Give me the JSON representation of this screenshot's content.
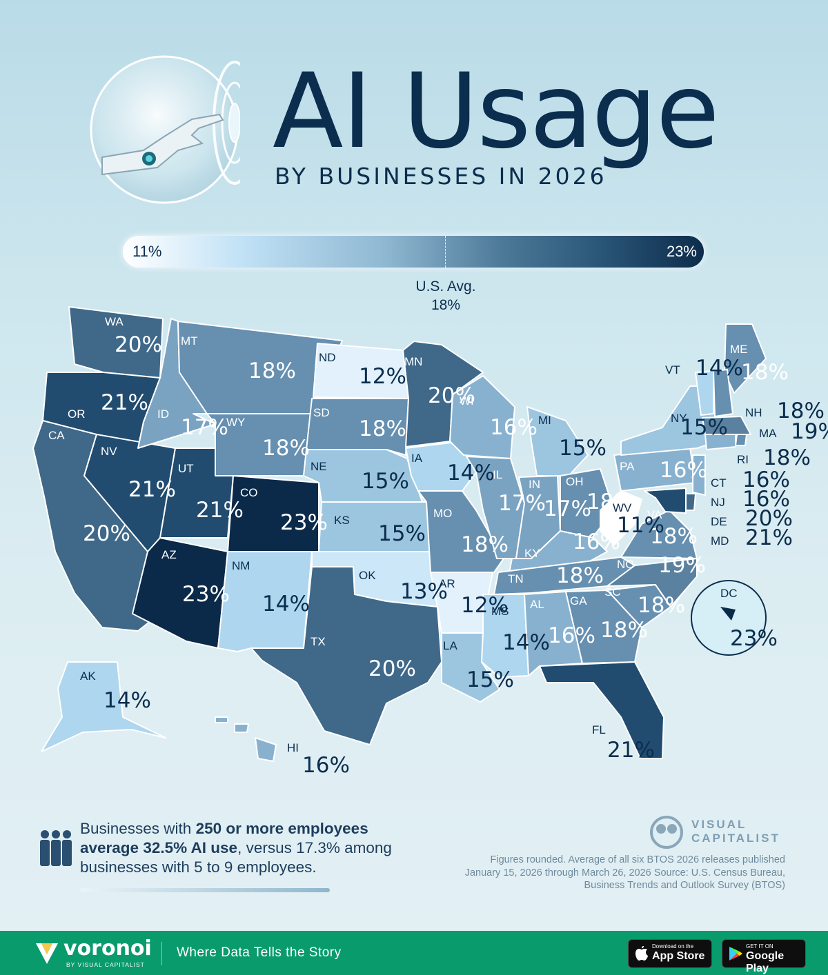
{
  "title": "AI Usage",
  "subtitle": "BY BUSINESSES IN 2026",
  "legend": {
    "min": "11%",
    "max": "23%",
    "avg_label": "U.S. Avg.",
    "avg_value": "18%"
  },
  "states": [
    {
      "code": "WA",
      "value": "20%"
    },
    {
      "code": "OR",
      "value": "21%"
    },
    {
      "code": "CA",
      "value": "20%"
    },
    {
      "code": "NV",
      "value": "21%"
    },
    {
      "code": "ID",
      "value": "17%"
    },
    {
      "code": "MT",
      "value": "18%"
    },
    {
      "code": "WY",
      "value": "18%"
    },
    {
      "code": "UT",
      "value": "21%"
    },
    {
      "code": "CO",
      "value": "23%"
    },
    {
      "code": "AZ",
      "value": "23%"
    },
    {
      "code": "NM",
      "value": "14%"
    },
    {
      "code": "ND",
      "value": "12%"
    },
    {
      "code": "SD",
      "value": "18%"
    },
    {
      "code": "NE",
      "value": "15%"
    },
    {
      "code": "KS",
      "value": "15%"
    },
    {
      "code": "OK",
      "value": "13%"
    },
    {
      "code": "TX",
      "value": "20%"
    },
    {
      "code": "MN",
      "value": "20%"
    },
    {
      "code": "IA",
      "value": "14%"
    },
    {
      "code": "MO",
      "value": "18%"
    },
    {
      "code": "AR",
      "value": "12%"
    },
    {
      "code": "LA",
      "value": "15%"
    },
    {
      "code": "WI",
      "value": "16%"
    },
    {
      "code": "IL",
      "value": "17%"
    },
    {
      "code": "MI",
      "value": "15%"
    },
    {
      "code": "IN",
      "value": "17%"
    },
    {
      "code": "OH",
      "value": "18%"
    },
    {
      "code": "KY",
      "value": "16%"
    },
    {
      "code": "TN",
      "value": "18%"
    },
    {
      "code": "MS",
      "value": "14%"
    },
    {
      "code": "AL",
      "value": "16%"
    },
    {
      "code": "GA",
      "value": "18%"
    },
    {
      "code": "FL",
      "value": "21%"
    },
    {
      "code": "SC",
      "value": "18%"
    },
    {
      "code": "NC",
      "value": "19%"
    },
    {
      "code": "VA",
      "value": "18%"
    },
    {
      "code": "WV",
      "value": "11%"
    },
    {
      "code": "PA",
      "value": "16%"
    },
    {
      "code": "NY",
      "value": "15%"
    },
    {
      "code": "VT",
      "value": "14%"
    },
    {
      "code": "ME",
      "value": "18%"
    },
    {
      "code": "NH",
      "value": "18%"
    },
    {
      "code": "MA",
      "value": "19%"
    },
    {
      "code": "RI",
      "value": "18%"
    },
    {
      "code": "CT",
      "value": "16%"
    },
    {
      "code": "NJ",
      "value": "16%"
    },
    {
      "code": "DE",
      "value": "20%"
    },
    {
      "code": "MD",
      "value": "21%"
    },
    {
      "code": "DC",
      "value": "23%"
    },
    {
      "code": "AK",
      "value": "14%"
    },
    {
      "code": "HI",
      "value": "16%"
    }
  ],
  "note": {
    "part1": "Businesses with ",
    "bold1": "250 or more employees average 32.5% AI use",
    "part2": ", versus 17.3% among businesses with 5 to 9 employees."
  },
  "brand": {
    "line1": "VISUAL",
    "line2": "CAPITALIST"
  },
  "source": "Figures rounded. Average of all six BTOS 2026 releases published January 15, 2026 through March 26, 2026 Source: U.S. Census Bureau, Business Trends and Outlook Survey (BTOS)",
  "footer": {
    "brand": "voronoi",
    "brand_sub": "BY VISUAL CAPITALIST",
    "tagline": "Where Data Tells the Story",
    "appstore_small": "Download on the",
    "appstore_big": "App Store",
    "play_small": "GET IT ON",
    "play_big": "Google Play"
  },
  "colors": {
    "c11": "#ffffff",
    "c12": "#e2f1fb",
    "c13": "#cbe7f8",
    "c14": "#aed6ef",
    "c15": "#9cc5e0",
    "c16": "#88b1cf",
    "c17": "#7aa3c2",
    "c18": "#668fb0",
    "c19": "#5a819f",
    "c20": "#3f6889",
    "c21": "#214c6f",
    "c23": "#0b2949",
    "footer": "#0a9b6d"
  }
}
